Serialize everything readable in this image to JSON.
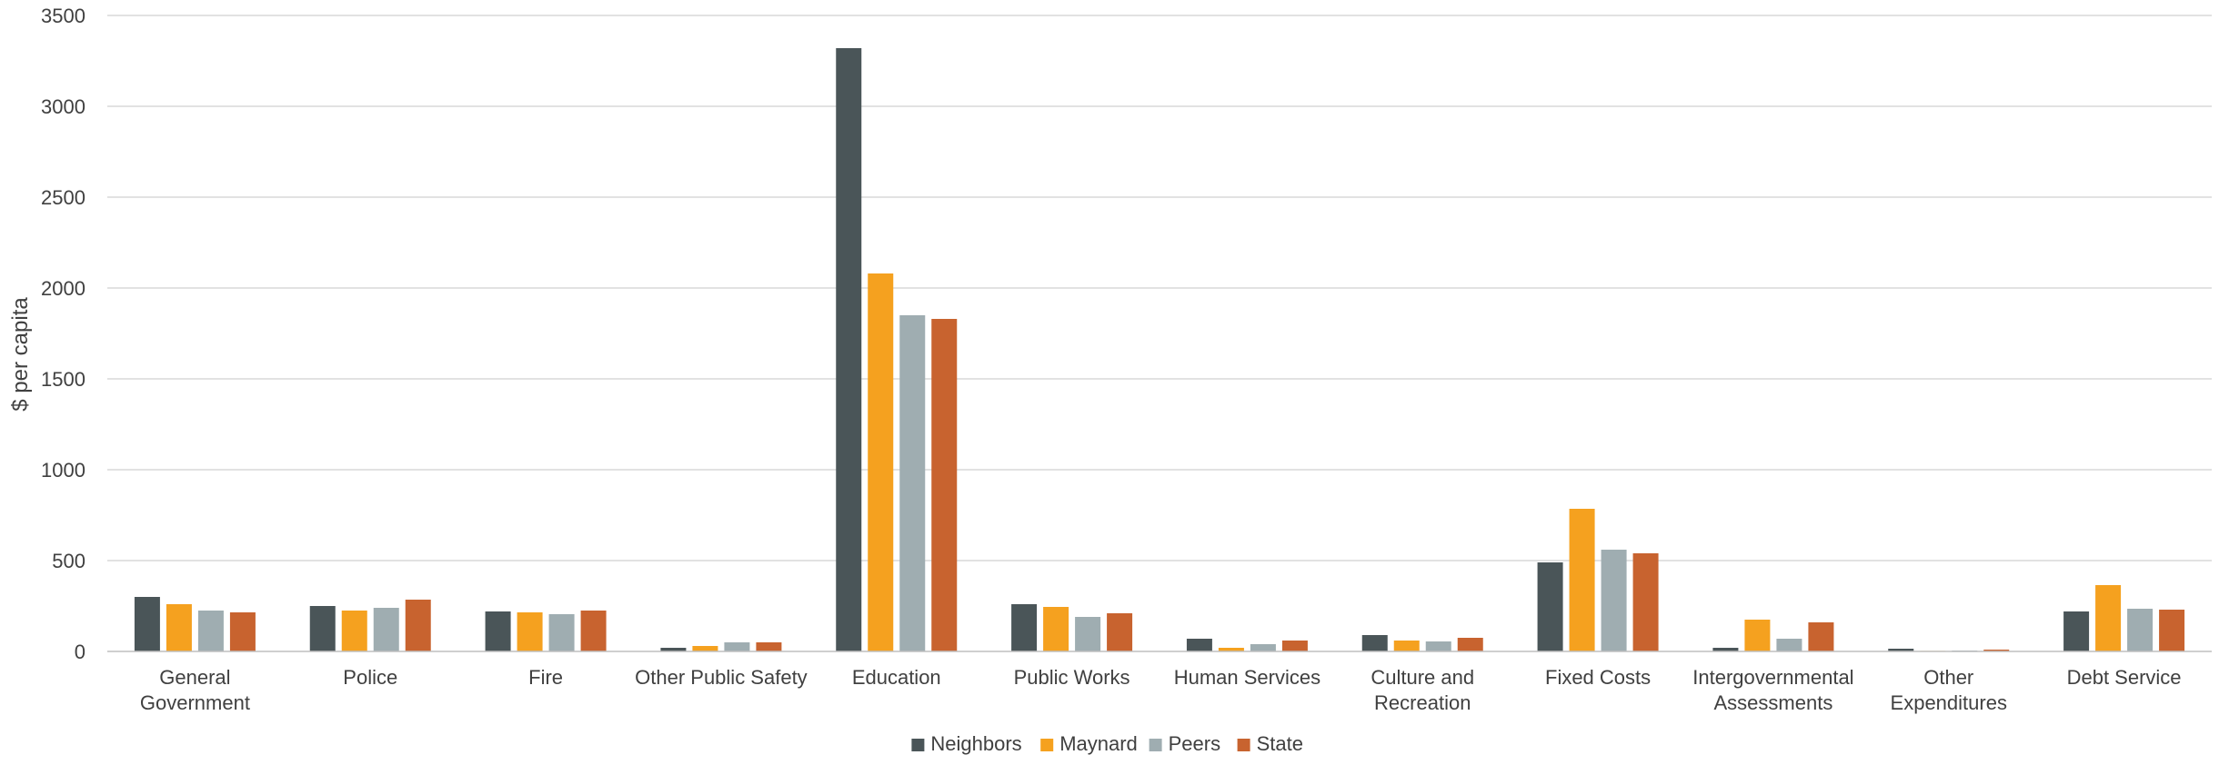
{
  "chart_data": {
    "type": "bar",
    "title": "",
    "xlabel": "",
    "ylabel": "$ per capita",
    "ylim": [
      0,
      3500
    ],
    "yticks": [
      0,
      500,
      1000,
      1500,
      2000,
      2500,
      3000,
      3500
    ],
    "grid": true,
    "legend_position": "bottom-center",
    "categories": [
      [
        "General",
        "Government"
      ],
      [
        "Police"
      ],
      [
        "Fire"
      ],
      [
        "Other Public Safety"
      ],
      [
        "Education"
      ],
      [
        "Public Works"
      ],
      [
        "Human Services"
      ],
      [
        "Culture and",
        "Recreation"
      ],
      [
        "Fixed Costs"
      ],
      [
        "Intergovernmental",
        "Assessments"
      ],
      [
        "Other",
        "Expenditures"
      ],
      [
        "Debt Service"
      ]
    ],
    "series": [
      {
        "name": "Neighbors",
        "color": "#4a5558",
        "values": [
          300,
          250,
          220,
          20,
          3320,
          260,
          70,
          90,
          490,
          20,
          15,
          220
        ]
      },
      {
        "name": "Maynard",
        "color": "#f5a11f",
        "values": [
          260,
          225,
          215,
          30,
          2080,
          245,
          20,
          60,
          785,
          175,
          3,
          365
        ]
      },
      {
        "name": "Peers",
        "color": "#9fadb1",
        "values": [
          225,
          240,
          205,
          50,
          1850,
          190,
          40,
          55,
          560,
          70,
          5,
          235
        ]
      },
      {
        "name": "State",
        "color": "#c8632f",
        "values": [
          215,
          285,
          225,
          50,
          1830,
          210,
          60,
          75,
          540,
          160,
          10,
          230
        ]
      }
    ]
  }
}
